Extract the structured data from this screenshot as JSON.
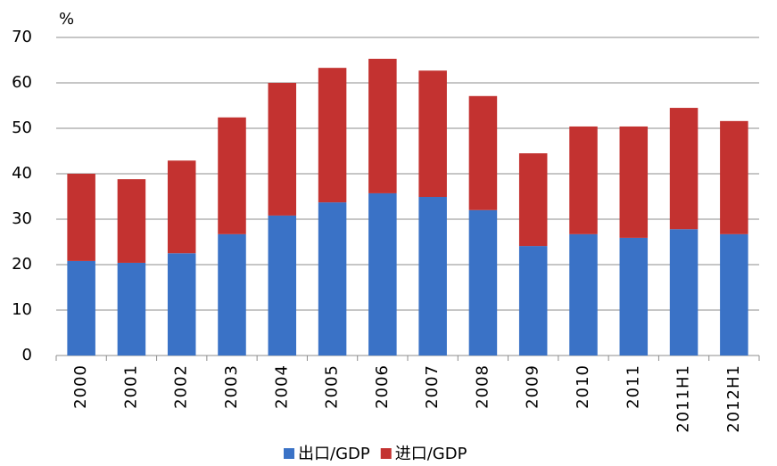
{
  "chart_data": {
    "type": "stacked_bar",
    "y_unit": "%",
    "categories": [
      "2000",
      "2001",
      "2002",
      "2003",
      "2004",
      "2005",
      "2006",
      "2007",
      "2008",
      "2009",
      "2010",
      "2011",
      "2011H1",
      "2012H1"
    ],
    "series": [
      {
        "name": "出口/GDP",
        "color": "#3a72c6",
        "values": [
          20.8,
          20.4,
          22.5,
          26.7,
          30.8,
          33.7,
          35.7,
          34.9,
          32.0,
          24.1,
          26.7,
          25.9,
          27.8,
          26.7
        ]
      },
      {
        "name": "进口/GDP",
        "color": "#c33230",
        "values": [
          19.2,
          18.4,
          20.4,
          25.7,
          29.2,
          29.6,
          29.6,
          27.8,
          25.1,
          20.4,
          23.7,
          24.5,
          26.7,
          24.9
        ]
      }
    ],
    "ylim": [
      0,
      70
    ],
    "yticks": [
      0,
      10,
      20,
      30,
      40,
      50,
      60,
      70
    ],
    "grid": true
  }
}
